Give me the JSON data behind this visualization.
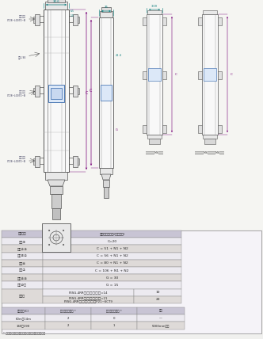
{
  "bg_color": "#f0f0ee",
  "drawing_bg": "#ffffff",
  "line_color": "#555555",
  "dim_color_h": "#00aaaa",
  "dim_color_v": "#aa00aa",
  "text_color": "#333333",
  "table_header_bg": "#cccccc",
  "table_row1_bg": "#e0dde8",
  "table_row2_bg": "#f0eef6",
  "table_border": "#888888",
  "table1_rows": [
    [
      "尺寸记号",
      "型号中的位数字(保护高度)"
    ],
    [
      "尺寸①",
      "C=20"
    ],
    [
      "尺寸②③",
      "C = 51 + N1 + N2"
    ],
    [
      "尺寸④⑤",
      "C = 56 + N1 + N2"
    ],
    [
      "尺寸⑥",
      "C = 80 + N1 + N2"
    ],
    [
      "尺寸⑦",
      "C = 106 + N1 + N2"
    ],
    [
      "尺寸⑧⑨",
      "G = 30"
    ],
    [
      "尺寸⑩⑪",
      "G = 15"
    ]
  ],
  "table1_subrows": [
    [
      "F3SG-4RR□□□□□□=14",
      "10"
    ],
    [
      "F3SG-4RR□□□□□□=21\nF3SG-4RR□□□□□□P21~6CT9",
      "20"
    ]
  ],
  "table2_headers": [
    "保护高度(C)",
    "上下安装孔数量 *",
    "中间安装孔数量 *",
    "备注"
  ],
  "table2_rows": [
    [
      "60m～14m",
      "2",
      "0",
      "—"
    ],
    [
      "160～190",
      "2",
      "1",
      "5000mm以下"
    ]
  ],
  "footnote": "* 变更的话请单独购买光源或受光器两端的配品。"
}
